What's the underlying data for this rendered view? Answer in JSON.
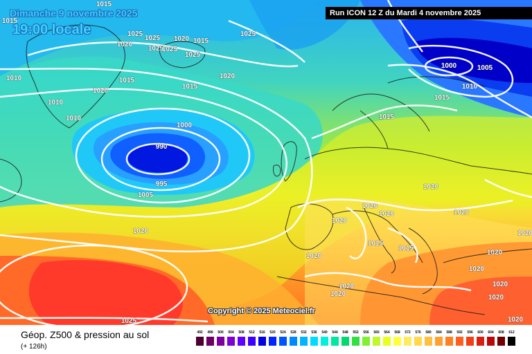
{
  "header": {
    "date_text": "Dimanche 9 novembre 2025",
    "time_text": "19:00 locale",
    "run_text": "Run ICON 12 Z du Mardi 4 novembre 2025"
  },
  "map": {
    "copyright": "Copyright © 2025 Meteociel.fr",
    "isobar_labels": [
      "1015",
      "1015",
      "1025",
      "1020",
      "1025",
      "1020",
      "1025",
      "1025",
      "1015",
      "1025",
      "1025",
      "1010",
      "1020",
      "1015",
      "1020",
      "1010",
      "1015",
      "1010",
      "1000",
      "990",
      "995",
      "1005",
      "1020",
      "1025",
      "1000",
      "1005",
      "1010",
      "1015",
      "1015",
      "1020",
      "1020",
      "1020",
      "1020",
      "1020",
      "1015",
      "1015",
      "1020",
      "1020",
      "1020",
      "1020",
      "1020",
      "1020",
      "1020",
      "1020",
      "1020"
    ],
    "pressure_centers": [
      {
        "type": "low",
        "value": "990",
        "region": "North Atlantic south of Iceland"
      },
      {
        "type": "low",
        "value": "1000",
        "region": "Barents Sea"
      }
    ]
  },
  "footer": {
    "title": "Géop. Z500 & pression au sol",
    "subtitle": "(+ 126h)"
  },
  "scale": {
    "labels": [
      "492",
      "496",
      "500",
      "504",
      "508",
      "512",
      "516",
      "520",
      "524",
      "528",
      "532",
      "536",
      "540",
      "544",
      "548",
      "552",
      "556",
      "560",
      "564",
      "568",
      "572",
      "576",
      "580",
      "584",
      "588",
      "592",
      "596",
      "600",
      "604",
      "608",
      "612"
    ],
    "colors": [
      "#4b0030",
      "#6a0064",
      "#7c009c",
      "#7e00d6",
      "#6200ff",
      "#3c00ff",
      "#0000e0",
      "#0024ff",
      "#0054ff",
      "#0088ff",
      "#00b4ff",
      "#00dcff",
      "#00f0e0",
      "#00e8a0",
      "#00d870",
      "#30e040",
      "#80f030",
      "#c0f828",
      "#e8ff20",
      "#ffff40",
      "#ffea60",
      "#ffd850",
      "#ffc040",
      "#ffa030",
      "#ff8020",
      "#ff6020",
      "#f04018",
      "#d82010",
      "#b80808",
      "#700000",
      "#000000"
    ]
  }
}
